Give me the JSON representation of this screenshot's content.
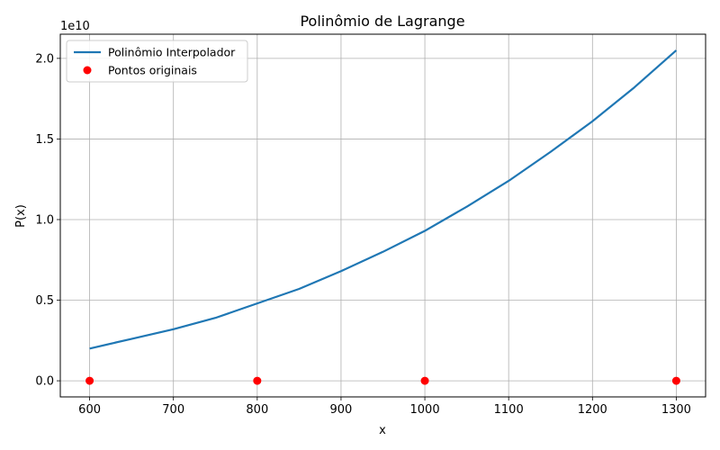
{
  "chart_data": {
    "type": "line",
    "title": "Polinômio de Lagrange",
    "xlabel": "x",
    "ylabel": "P(x)",
    "y_multiplier_label": "1e10",
    "xlim": [
      565,
      1335
    ],
    "ylim": [
      -0.1,
      2.15
    ],
    "x_ticks": [
      600,
      700,
      800,
      900,
      1000,
      1100,
      1200,
      1300
    ],
    "y_ticks": [
      0.0,
      0.5,
      1.0,
      1.5,
      2.0
    ],
    "x_tick_labels": [
      "600",
      "700",
      "800",
      "900",
      "1000",
      "1100",
      "1200",
      "1300"
    ],
    "y_tick_labels": [
      "0.0",
      "0.5",
      "1.0",
      "1.5",
      "2.0"
    ],
    "grid": true,
    "legend_position": "top-left",
    "series": [
      {
        "name": "Polinômio Interpolador",
        "kind": "line",
        "color": "#1f77b4",
        "x": [
          600,
          650,
          700,
          750,
          800,
          850,
          900,
          950,
          1000,
          1050,
          1100,
          1150,
          1200,
          1250,
          1300
        ],
        "y": [
          0.2,
          0.26,
          0.32,
          0.39,
          0.48,
          0.57,
          0.68,
          0.8,
          0.93,
          1.08,
          1.24,
          1.42,
          1.61,
          1.82,
          2.05
        ]
      },
      {
        "name": "Pontos originais",
        "kind": "scatter",
        "color": "#ff0000",
        "x": [
          600,
          800,
          1000,
          1300
        ],
        "y": [
          0,
          0,
          0,
          0
        ]
      }
    ]
  }
}
